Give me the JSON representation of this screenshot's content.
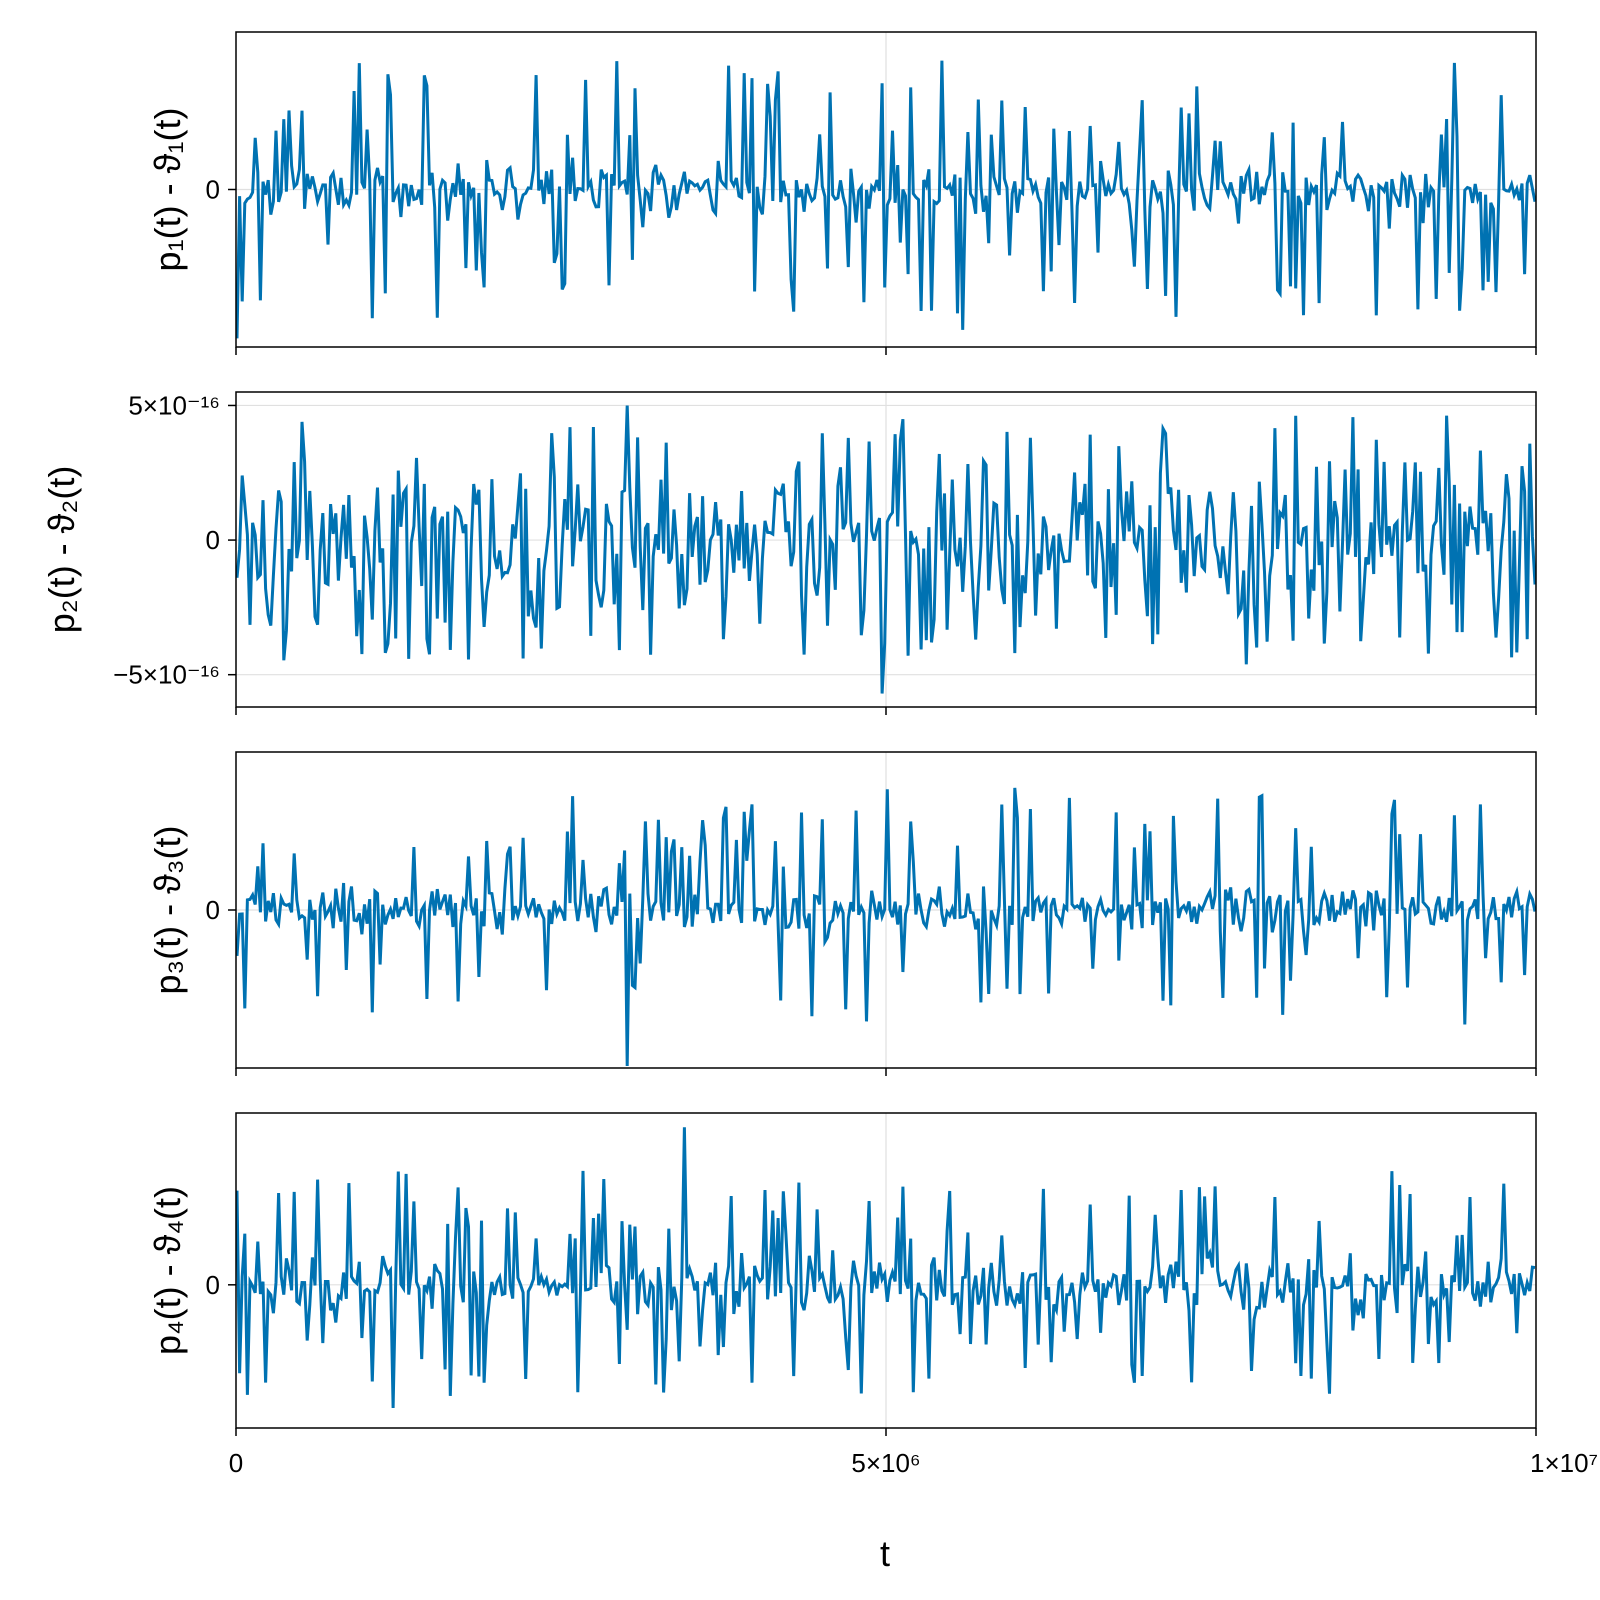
{
  "chart_data": {
    "type": "line",
    "xlabel": "t",
    "xlim": [
      0,
      10000000
    ],
    "x_ticks": [
      {
        "value": 0,
        "label": "0"
      },
      {
        "value": 5000000,
        "label": "5×10⁶"
      },
      {
        "value": 10000000,
        "label": "1×10⁷"
      }
    ],
    "grid": true,
    "series_color": "#0072b2",
    "n_samples": 500,
    "panels": [
      {
        "ylabel": "p₁(t) - ϑ₁(t)",
        "ylim": [
          -1.1,
          1.1
        ],
        "y_ticks": [
          {
            "value": 0,
            "label": "0"
          }
        ],
        "envelope": {
          "core": 0.17,
          "spike": 0.95
        },
        "seed": 11,
        "extremes": [
          {
            "t": 0.0,
            "y": -1.04
          },
          {
            "t": 0.56,
            "y": 0.95
          },
          {
            "t": 0.56,
            "y": -0.98
          }
        ]
      },
      {
        "ylabel": "p₂(t) - ϑ₂(t)",
        "ylim": [
          -6.2e-16,
          5.5e-16
        ],
        "y_ticks": [
          {
            "value": 5e-16,
            "label": "5×10⁻¹⁶"
          },
          {
            "value": 0,
            "label": "0"
          },
          {
            "value": -5e-16,
            "label": "−5×10⁻¹⁶"
          }
        ],
        "envelope": {
          "core": 2.3e-16,
          "spike": 4.9e-16
        },
        "seed": 23,
        "extremes": [
          {
            "t": 0.3,
            "y": 5e-16
          },
          {
            "t": 0.497,
            "y": -5.7e-16
          }
        ]
      },
      {
        "ylabel": "p₃(t) - ϑ₃(t)",
        "ylim": [
          -1.1,
          1.1
        ],
        "y_ticks": [
          {
            "value": 0,
            "label": "0"
          }
        ],
        "envelope": {
          "core": 0.13,
          "spike": 0.85
        },
        "seed": 37,
        "extremes": [
          {
            "t": 0.3,
            "y": -1.13
          },
          {
            "t": 0.5,
            "y": 0.84
          },
          {
            "t": 0.6,
            "y": 0.85
          }
        ]
      },
      {
        "ylabel": "p₄(t) - ϑ₄(t)",
        "ylim": [
          -1.0,
          1.2
        ],
        "y_ticks": [
          {
            "value": 0,
            "label": "0"
          }
        ],
        "envelope": {
          "core": 0.18,
          "spike": 0.85
        },
        "seed": 53,
        "extremes": [
          {
            "t": 0.345,
            "y": 1.1
          },
          {
            "t": 0.12,
            "y": -0.86
          }
        ]
      }
    ]
  }
}
